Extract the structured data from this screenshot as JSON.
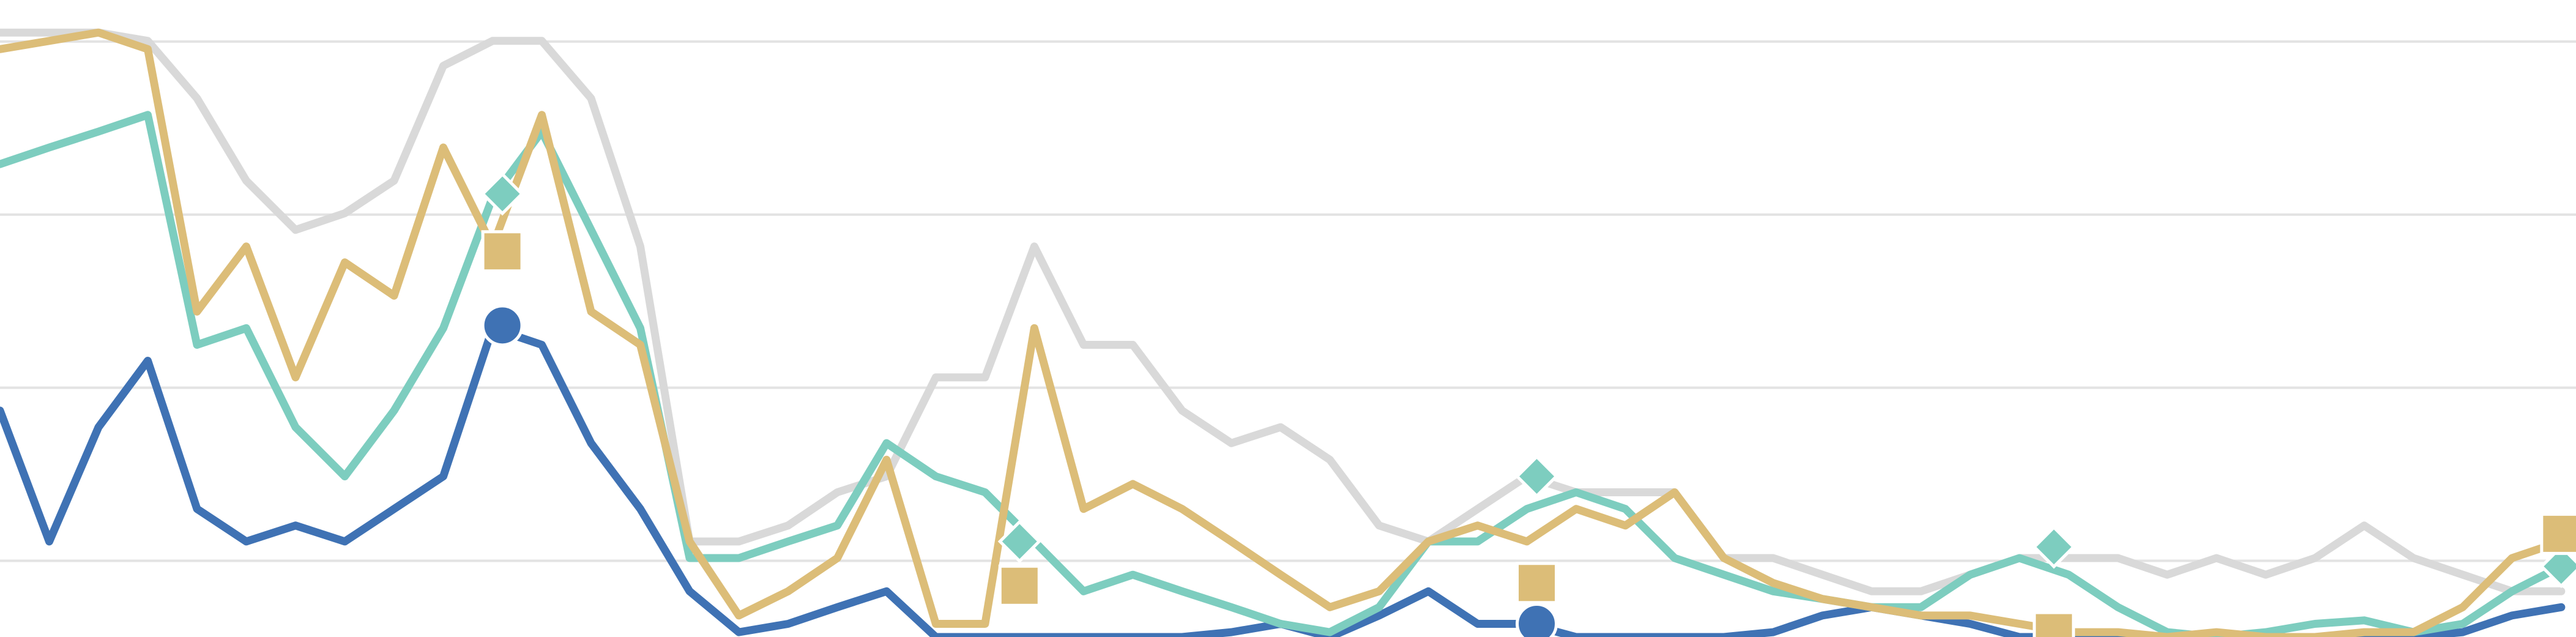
{
  "chart_data": {
    "type": "line",
    "x": [
      0,
      1,
      2,
      3,
      4,
      5,
      6,
      7,
      8,
      9,
      10,
      11,
      12,
      13,
      14,
      15,
      16,
      17,
      18,
      19,
      20,
      21,
      22,
      23,
      24,
      25,
      26,
      27,
      28,
      29,
      30,
      31,
      32,
      33,
      34,
      35,
      36,
      37,
      38,
      39,
      40,
      41,
      42,
      43,
      44,
      45,
      46,
      47,
      48,
      49,
      50,
      51,
      52
    ],
    "xlim": [
      0,
      52.3
    ],
    "ylim": [
      14,
      106
    ],
    "yticks": [
      25,
      50,
      75,
      100
    ],
    "grid": true,
    "series": [
      {
        "color": "#d9d9d9",
        "values": [
          101.3,
          101.3,
          101.3,
          100.1,
          91.8,
          79.9,
          72.8,
          75.2,
          79.9,
          96.5,
          100.1,
          100.1,
          91.8,
          70.4,
          27.8,
          27.8,
          30.1,
          34.9,
          37.2,
          51.5,
          51.5,
          70.4,
          56.2,
          56.2,
          46.7,
          42.0,
          44.3,
          39.6,
          30.1,
          27.8,
          32.5,
          37.2,
          34.9,
          34.9,
          34.9,
          25.4,
          25.4,
          23.0,
          20.6,
          20.6,
          23.0,
          25.4,
          25.4,
          25.4,
          23.0,
          25.4,
          23.0,
          25.4,
          30.1,
          25.4,
          23.0,
          20.6,
          20.6
        ]
      },
      {
        "color": "#3f72b4",
        "marker": "circle",
        "values": [
          46.7,
          27.8,
          44.3,
          53.9,
          32.5,
          27.8,
          30.1,
          27.8,
          32.5,
          37.2,
          58.6,
          56.2,
          42.0,
          32.5,
          20.6,
          14.7,
          15.9,
          18.3,
          20.6,
          14.0,
          14.0,
          14.0,
          14.0,
          14.0,
          14.0,
          14.7,
          15.9,
          14.0,
          17.1,
          20.6,
          15.9,
          15.9,
          14.0,
          14.0,
          14.0,
          14.0,
          14.7,
          17.1,
          18.3,
          17.1,
          15.9,
          14.0,
          14.0,
          14.0,
          14.0,
          14.0,
          14.0,
          14.0,
          14.0,
          14.0,
          14.7,
          17.1,
          18.3
        ],
        "markers": {
          "x": [
            10.2,
            20.7,
            31.2,
            41.7,
            52
          ],
          "values": [
            59.0,
            null,
            15.9,
            null,
            null
          ]
        }
      },
      {
        "color": "#7dcdbf",
        "marker": "diamond",
        "values": [
          82.3,
          84.7,
          87.0,
          89.4,
          56.2,
          58.6,
          44.3,
          37.2,
          46.7,
          58.6,
          77.5,
          87.0,
          72.8,
          58.6,
          25.4,
          25.4,
          27.8,
          30.1,
          42.0,
          37.2,
          34.9,
          27.8,
          20.6,
          23.0,
          20.6,
          18.3,
          15.9,
          14.7,
          18.3,
          27.8,
          27.8,
          32.5,
          34.9,
          32.5,
          25.4,
          23.0,
          20.6,
          19.5,
          18.3,
          18.3,
          23.0,
          25.4,
          23.0,
          18.3,
          14.7,
          14.0,
          14.7,
          15.9,
          16.4,
          14.7,
          15.9,
          20.6,
          24.2
        ],
        "markers": {
          "x": [
            10.2,
            20.7,
            31.2,
            41.7,
            52
          ],
          "values": [
            78.0,
            27.8,
            37.2,
            27.0,
            24.2
          ]
        }
      },
      {
        "color": "#dcbd78",
        "marker": "square",
        "values": [
          98.9,
          100.1,
          101.3,
          98.9,
          61.0,
          70.4,
          51.5,
          68.1,
          63.3,
          84.7,
          70.4,
          89.4,
          61.0,
          56.2,
          27.8,
          17.1,
          20.6,
          25.4,
          39.6,
          15.9,
          15.9,
          58.6,
          32.5,
          36.1,
          32.5,
          27.8,
          23.0,
          18.3,
          20.6,
          27.8,
          30.1,
          27.8,
          32.5,
          30.1,
          34.9,
          25.4,
          21.8,
          19.5,
          18.3,
          17.1,
          17.1,
          15.9,
          14.7,
          14.7,
          14.0,
          14.7,
          14.0,
          14.0,
          14.7,
          14.7,
          18.3,
          25.4,
          27.8
        ],
        "markers": {
          "x": [
            10.2,
            20.7,
            31.2,
            41.7,
            52
          ],
          "values": [
            69.7,
            21.4,
            21.8,
            14.7,
            28.9
          ]
        }
      }
    ]
  }
}
